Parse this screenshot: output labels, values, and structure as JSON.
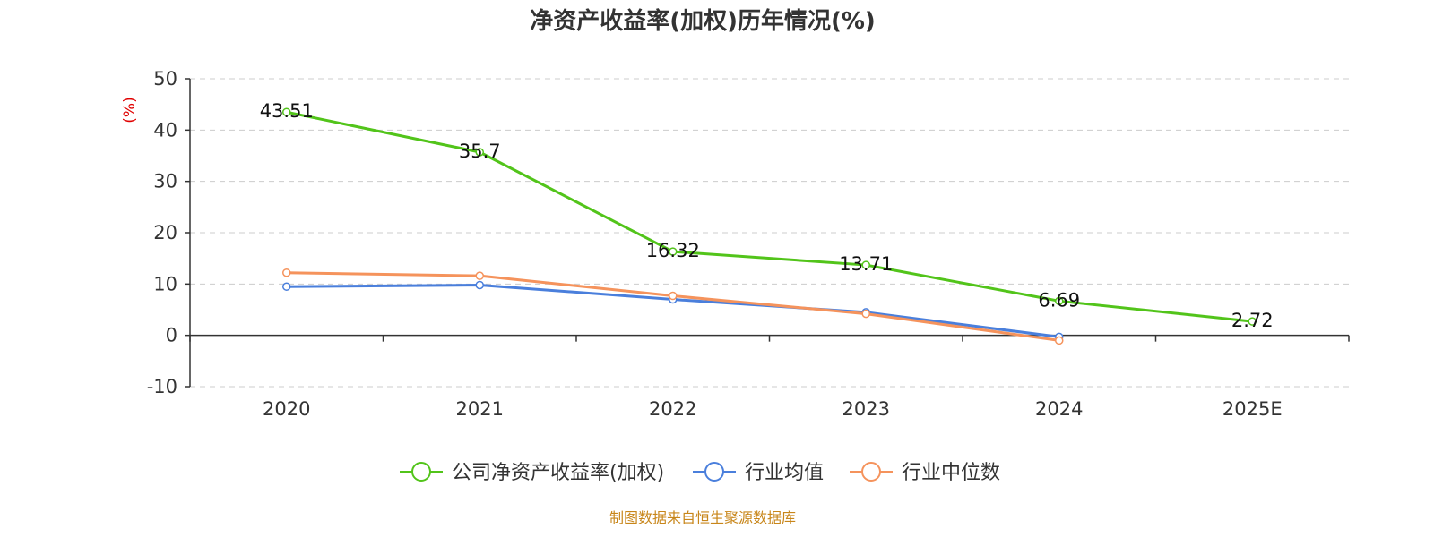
{
  "chart_data": {
    "type": "line",
    "title": "净资产收益率(加权)历年情况(%)",
    "ylabel": "(%)",
    "xlabel": "",
    "categories": [
      "2020",
      "2021",
      "2022",
      "2023",
      "2024",
      "2025E"
    ],
    "ylim": [
      -10,
      50
    ],
    "yticks": [
      -10,
      0,
      10,
      20,
      30,
      40,
      50
    ],
    "grid": true,
    "legend_position": "bottom",
    "series": [
      {
        "name": "公司净资产收益率(加权)",
        "color": "#52c41a",
        "values": [
          43.51,
          35.7,
          16.32,
          13.71,
          6.69,
          2.72
        ],
        "labels": [
          "43.51",
          "35.7",
          "16.32",
          "13.71",
          "6.69",
          "2.72"
        ]
      },
      {
        "name": "行业均值",
        "color": "#4a7fdc",
        "values": [
          9.5,
          9.8,
          7.0,
          4.5,
          -0.3,
          null
        ]
      },
      {
        "name": "行业中位数",
        "color": "#f5935c",
        "values": [
          12.2,
          11.6,
          7.7,
          4.2,
          -1.0,
          null
        ]
      }
    ]
  },
  "source": "制图数据来自恒生聚源数据库"
}
